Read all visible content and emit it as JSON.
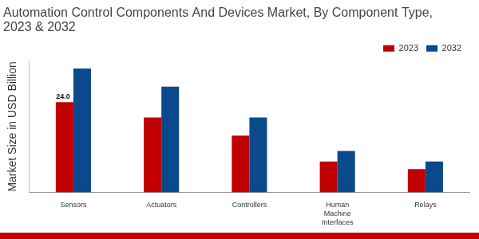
{
  "chart_data": {
    "type": "bar",
    "title": [
      "Automation Control Components And Devices Market, By Component Type,",
      "2023 & 2032"
    ],
    "y_label": "Market Size in USD Billion",
    "categories": [
      "Sensors",
      "Actuators",
      "Controllers",
      "Human Machine Interfaces",
      "Relays"
    ],
    "series": [
      {
        "name": "2023",
        "color": "#c00000",
        "values": [
          24.0,
          19.9,
          15.1,
          8.2,
          6.2
        ],
        "value_labels": [
          "24.0",
          null,
          null,
          null,
          null
        ]
      },
      {
        "name": "2032",
        "color": "#0a4a8c",
        "values": [
          32.9,
          28.1,
          19.9,
          11.0,
          8.2
        ]
      }
    ],
    "ylim": [
      0,
      35
    ],
    "grid": false,
    "legend": "top-right",
    "tick_labels": "x"
  }
}
